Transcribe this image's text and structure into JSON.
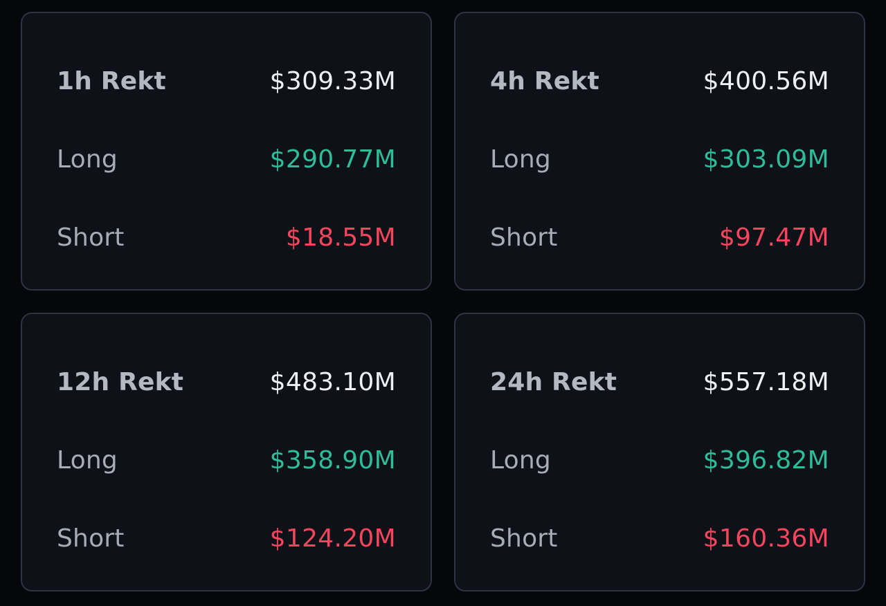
{
  "colors": {
    "background": "#05070b",
    "card": "#0e1117",
    "border": "#2e3440",
    "long": "#2ebd96",
    "short": "#f6465d",
    "total": "#eef0f3"
  },
  "cards": [
    {
      "title": "1h Rekt",
      "total": "$309.33M",
      "long_label": "Long",
      "long": "$290.77M",
      "short_label": "Short",
      "short": "$18.55M"
    },
    {
      "title": "4h Rekt",
      "total": "$400.56M",
      "long_label": "Long",
      "long": "$303.09M",
      "short_label": "Short",
      "short": "$97.47M"
    },
    {
      "title": "12h Rekt",
      "total": "$483.10M",
      "long_label": "Long",
      "long": "$358.90M",
      "short_label": "Short",
      "short": "$124.20M"
    },
    {
      "title": "24h Rekt",
      "total": "$557.18M",
      "long_label": "Long",
      "long": "$396.82M",
      "short_label": "Short",
      "short": "$160.36M"
    }
  ]
}
